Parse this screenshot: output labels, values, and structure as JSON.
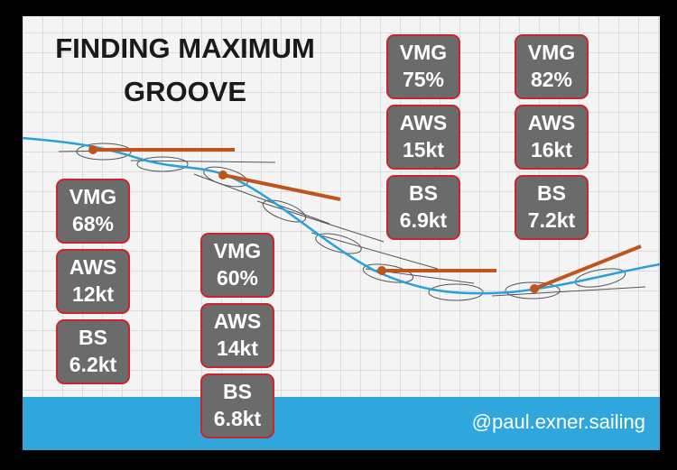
{
  "title_lines": [
    "FINDING MAXIMUM",
    "GROOVE"
  ],
  "groups": [
    {
      "boxes": [
        {
          "label": "VMG",
          "value": "68%"
        },
        {
          "label": "AWS",
          "value": "12kt"
        },
        {
          "label": "BS",
          "value": "6.2kt"
        }
      ]
    },
    {
      "boxes": [
        {
          "label": "VMG",
          "value": "60%"
        },
        {
          "label": "AWS",
          "value": "14kt"
        },
        {
          "label": "BS",
          "value": "6.8kt"
        }
      ]
    },
    {
      "boxes": [
        {
          "label": "VMG",
          "value": "75%"
        },
        {
          "label": "AWS",
          "value": "15kt"
        },
        {
          "label": "BS",
          "value": "6.9kt"
        }
      ]
    },
    {
      "boxes": [
        {
          "label": "VMG",
          "value": "82%"
        },
        {
          "label": "AWS",
          "value": "16kt"
        },
        {
          "label": "BS",
          "value": "7.2kt"
        }
      ]
    }
  ],
  "footer_handle": "@paul.exner.sailing"
}
